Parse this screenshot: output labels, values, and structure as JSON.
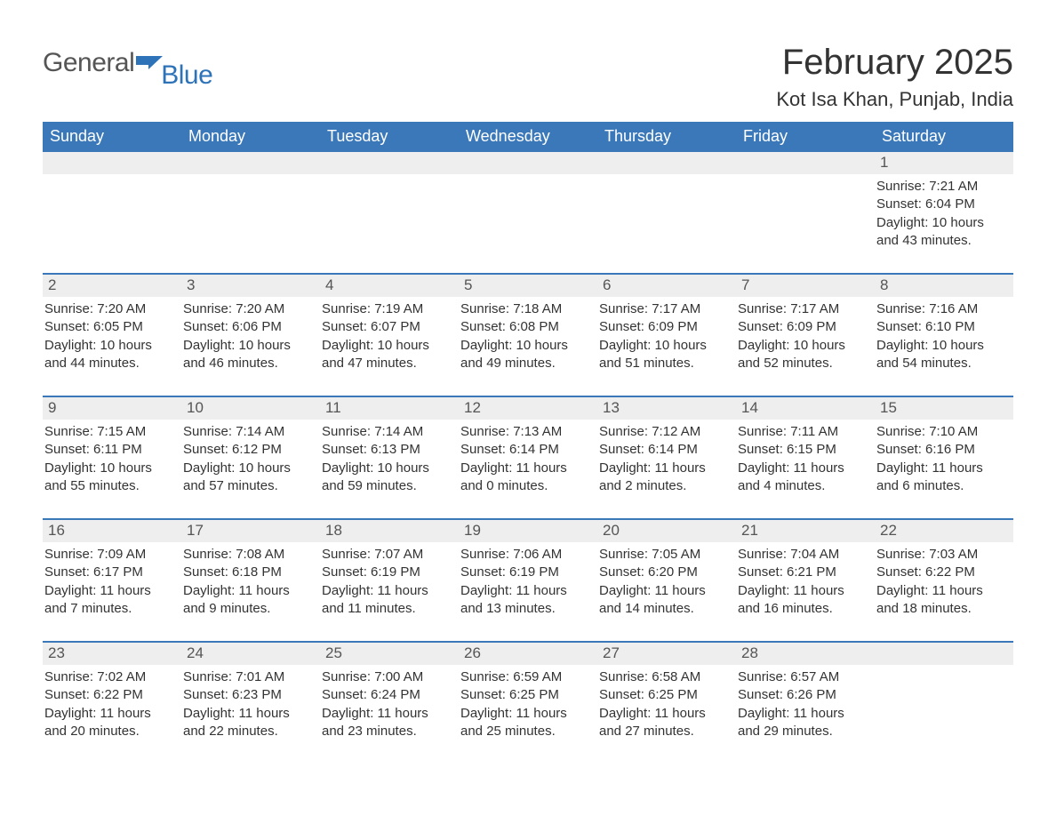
{
  "logo": {
    "text_general": "General",
    "text_blue": "Blue",
    "icon_color": "#2e73b8",
    "general_color": "#555555",
    "blue_color": "#2e73b8"
  },
  "header": {
    "month_title": "February 2025",
    "location": "Kot Isa Khan, Punjab, India",
    "title_color": "#333333",
    "title_fontsize": 40,
    "location_fontsize": 22
  },
  "calendar": {
    "header_bg": "#3a78b9",
    "header_text_color": "#ffffff",
    "row_border_color": "#3a78b9",
    "daynum_bg": "#eeeeee",
    "daynum_color": "#555555",
    "body_text_color": "#333333",
    "weekdays": [
      "Sunday",
      "Monday",
      "Tuesday",
      "Wednesday",
      "Thursday",
      "Friday",
      "Saturday"
    ],
    "weeks": [
      [
        {
          "day": "",
          "sunrise": "",
          "sunset": "",
          "daylight": ""
        },
        {
          "day": "",
          "sunrise": "",
          "sunset": "",
          "daylight": ""
        },
        {
          "day": "",
          "sunrise": "",
          "sunset": "",
          "daylight": ""
        },
        {
          "day": "",
          "sunrise": "",
          "sunset": "",
          "daylight": ""
        },
        {
          "day": "",
          "sunrise": "",
          "sunset": "",
          "daylight": ""
        },
        {
          "day": "",
          "sunrise": "",
          "sunset": "",
          "daylight": ""
        },
        {
          "day": "1",
          "sunrise": "Sunrise: 7:21 AM",
          "sunset": "Sunset: 6:04 PM",
          "daylight": "Daylight: 10 hours and 43 minutes."
        }
      ],
      [
        {
          "day": "2",
          "sunrise": "Sunrise: 7:20 AM",
          "sunset": "Sunset: 6:05 PM",
          "daylight": "Daylight: 10 hours and 44 minutes."
        },
        {
          "day": "3",
          "sunrise": "Sunrise: 7:20 AM",
          "sunset": "Sunset: 6:06 PM",
          "daylight": "Daylight: 10 hours and 46 minutes."
        },
        {
          "day": "4",
          "sunrise": "Sunrise: 7:19 AM",
          "sunset": "Sunset: 6:07 PM",
          "daylight": "Daylight: 10 hours and 47 minutes."
        },
        {
          "day": "5",
          "sunrise": "Sunrise: 7:18 AM",
          "sunset": "Sunset: 6:08 PM",
          "daylight": "Daylight: 10 hours and 49 minutes."
        },
        {
          "day": "6",
          "sunrise": "Sunrise: 7:17 AM",
          "sunset": "Sunset: 6:09 PM",
          "daylight": "Daylight: 10 hours and 51 minutes."
        },
        {
          "day": "7",
          "sunrise": "Sunrise: 7:17 AM",
          "sunset": "Sunset: 6:09 PM",
          "daylight": "Daylight: 10 hours and 52 minutes."
        },
        {
          "day": "8",
          "sunrise": "Sunrise: 7:16 AM",
          "sunset": "Sunset: 6:10 PM",
          "daylight": "Daylight: 10 hours and 54 minutes."
        }
      ],
      [
        {
          "day": "9",
          "sunrise": "Sunrise: 7:15 AM",
          "sunset": "Sunset: 6:11 PM",
          "daylight": "Daylight: 10 hours and 55 minutes."
        },
        {
          "day": "10",
          "sunrise": "Sunrise: 7:14 AM",
          "sunset": "Sunset: 6:12 PM",
          "daylight": "Daylight: 10 hours and 57 minutes."
        },
        {
          "day": "11",
          "sunrise": "Sunrise: 7:14 AM",
          "sunset": "Sunset: 6:13 PM",
          "daylight": "Daylight: 10 hours and 59 minutes."
        },
        {
          "day": "12",
          "sunrise": "Sunrise: 7:13 AM",
          "sunset": "Sunset: 6:14 PM",
          "daylight": "Daylight: 11 hours and 0 minutes."
        },
        {
          "day": "13",
          "sunrise": "Sunrise: 7:12 AM",
          "sunset": "Sunset: 6:14 PM",
          "daylight": "Daylight: 11 hours and 2 minutes."
        },
        {
          "day": "14",
          "sunrise": "Sunrise: 7:11 AM",
          "sunset": "Sunset: 6:15 PM",
          "daylight": "Daylight: 11 hours and 4 minutes."
        },
        {
          "day": "15",
          "sunrise": "Sunrise: 7:10 AM",
          "sunset": "Sunset: 6:16 PM",
          "daylight": "Daylight: 11 hours and 6 minutes."
        }
      ],
      [
        {
          "day": "16",
          "sunrise": "Sunrise: 7:09 AM",
          "sunset": "Sunset: 6:17 PM",
          "daylight": "Daylight: 11 hours and 7 minutes."
        },
        {
          "day": "17",
          "sunrise": "Sunrise: 7:08 AM",
          "sunset": "Sunset: 6:18 PM",
          "daylight": "Daylight: 11 hours and 9 minutes."
        },
        {
          "day": "18",
          "sunrise": "Sunrise: 7:07 AM",
          "sunset": "Sunset: 6:19 PM",
          "daylight": "Daylight: 11 hours and 11 minutes."
        },
        {
          "day": "19",
          "sunrise": "Sunrise: 7:06 AM",
          "sunset": "Sunset: 6:19 PM",
          "daylight": "Daylight: 11 hours and 13 minutes."
        },
        {
          "day": "20",
          "sunrise": "Sunrise: 7:05 AM",
          "sunset": "Sunset: 6:20 PM",
          "daylight": "Daylight: 11 hours and 14 minutes."
        },
        {
          "day": "21",
          "sunrise": "Sunrise: 7:04 AM",
          "sunset": "Sunset: 6:21 PM",
          "daylight": "Daylight: 11 hours and 16 minutes."
        },
        {
          "day": "22",
          "sunrise": "Sunrise: 7:03 AM",
          "sunset": "Sunset: 6:22 PM",
          "daylight": "Daylight: 11 hours and 18 minutes."
        }
      ],
      [
        {
          "day": "23",
          "sunrise": "Sunrise: 7:02 AM",
          "sunset": "Sunset: 6:22 PM",
          "daylight": "Daylight: 11 hours and 20 minutes."
        },
        {
          "day": "24",
          "sunrise": "Sunrise: 7:01 AM",
          "sunset": "Sunset: 6:23 PM",
          "daylight": "Daylight: 11 hours and 22 minutes."
        },
        {
          "day": "25",
          "sunrise": "Sunrise: 7:00 AM",
          "sunset": "Sunset: 6:24 PM",
          "daylight": "Daylight: 11 hours and 23 minutes."
        },
        {
          "day": "26",
          "sunrise": "Sunrise: 6:59 AM",
          "sunset": "Sunset: 6:25 PM",
          "daylight": "Daylight: 11 hours and 25 minutes."
        },
        {
          "day": "27",
          "sunrise": "Sunrise: 6:58 AM",
          "sunset": "Sunset: 6:25 PM",
          "daylight": "Daylight: 11 hours and 27 minutes."
        },
        {
          "day": "28",
          "sunrise": "Sunrise: 6:57 AM",
          "sunset": "Sunset: 6:26 PM",
          "daylight": "Daylight: 11 hours and 29 minutes."
        },
        {
          "day": "",
          "sunrise": "",
          "sunset": "",
          "daylight": ""
        }
      ]
    ]
  }
}
